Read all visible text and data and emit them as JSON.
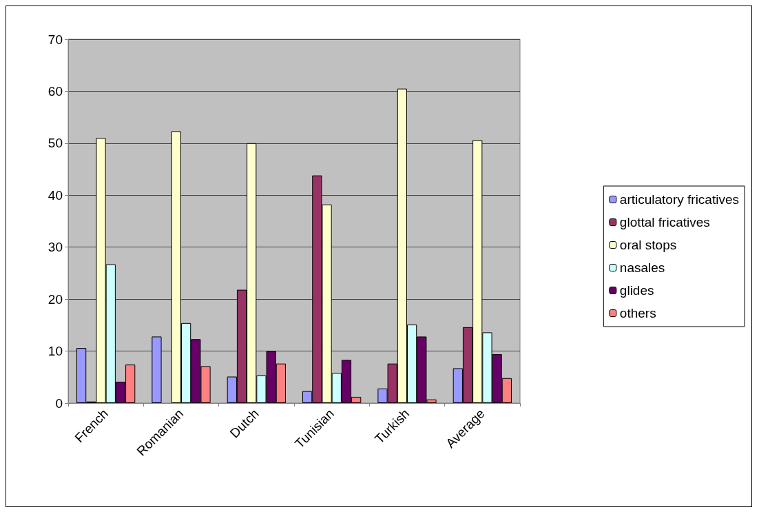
{
  "chart_data": {
    "type": "bar",
    "categories": [
      "French",
      "Romanian",
      "Dutch",
      "Tunisian",
      "Turkish",
      "Average"
    ],
    "series": [
      {
        "name": "articulatory fricatives",
        "color": "#9999ff",
        "values": [
          10.6,
          12.8,
          5.1,
          2.3,
          2.8,
          6.7
        ]
      },
      {
        "name": "glottal fricatives",
        "color": "#993366",
        "values": [
          0.3,
          null,
          21.8,
          43.8,
          7.6,
          14.6
        ]
      },
      {
        "name": "oral stops",
        "color": "#ffffcc",
        "values": [
          51,
          52.3,
          50,
          38.2,
          60.5,
          50.6
        ]
      },
      {
        "name": "nasales",
        "color": "#ccffff",
        "values": [
          26.7,
          15.4,
          5.3,
          5.8,
          15.1,
          13.6
        ]
      },
      {
        "name": "glides",
        "color": "#660066",
        "values": [
          4.1,
          12.3,
          10,
          8.3,
          12.8,
          9.4
        ]
      },
      {
        "name": "others",
        "color": "#ff8080",
        "values": [
          7.4,
          7.1,
          7.6,
          1.2,
          0.7,
          4.8
        ]
      }
    ],
    "ylim": [
      0,
      70
    ],
    "yticks": [
      0,
      10,
      20,
      30,
      40,
      50,
      60,
      70
    ],
    "grid": "y",
    "legend": "right"
  }
}
